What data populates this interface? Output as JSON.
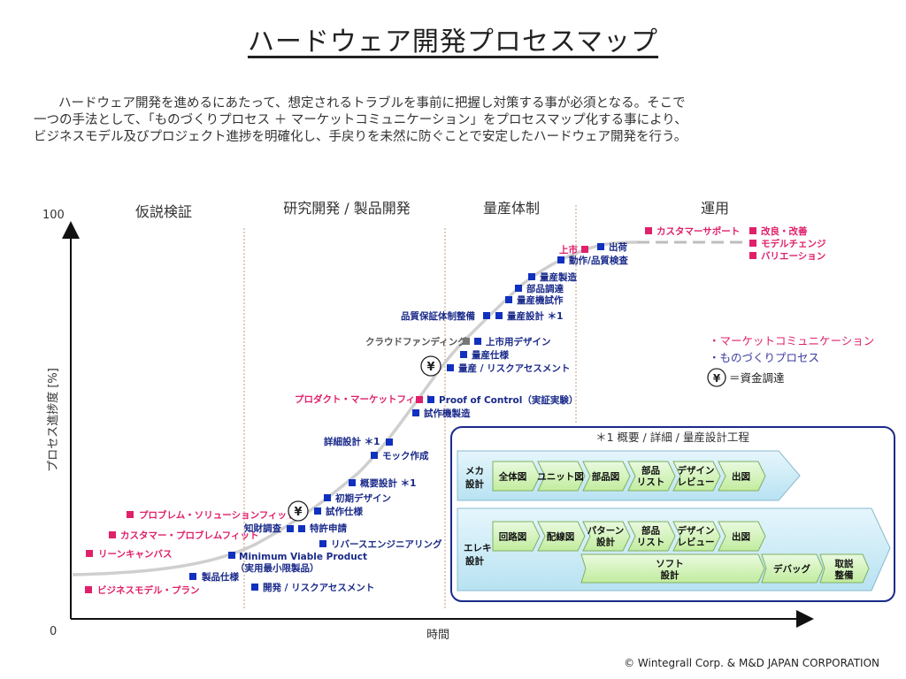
{
  "title": "ハードウェア開発プロセスマップ",
  "intro": [
    "ハードウェア開発を進めるにあたって、想定されるトラブルを事前に把握し対策する事が必須となる。そこで",
    "一つの手法として、「ものづくりプロセス ＋ マーケットコミュニケーション」をプロセスマップ化する事により、",
    "ビジネスモデル及びプロジェクト進捗を明確化し、手戻りを未然に防ぐことで安定したハードウェア開発を行う。"
  ],
  "phases": [
    "仮説検証",
    "研究開発 / 製品開発",
    "量産体制",
    "運用"
  ],
  "axes": {
    "y_label": "プロセス進捗度 [%]",
    "y_max": "100",
    "y_min": "0",
    "x_label": "時間"
  },
  "colors": {
    "blue": "#1030c0",
    "pink": "#e0206a",
    "gray": "#777777",
    "curve": "#cccccc",
    "box_border": "#1a2a8a"
  },
  "steps": {
    "business_model": "ビジネスモデル・プラン",
    "lean_canvas": "リーンキャンバス",
    "customer_problem": "カスタマー・プロブレムフィット",
    "problem_solution": "プロブレム・ソリューションフィット",
    "product_spec": "製品仕様",
    "dev_risk": "開発 / リスクアセスメント",
    "mvp_line1": "Minimum Viable Product",
    "mvp_line2": "（実用最小限製品）",
    "reverse_eng": "リバースエンジニアリング",
    "ip_research": "知財調査",
    "patent": "特許申請",
    "prototype_spec": "試作仕様",
    "initial_design": "初期デザイン",
    "outline_design": "概要設計 ＊1",
    "mock": "モック作成",
    "detail_design": "詳細設計 ＊1",
    "proto_build": "試作機製造",
    "product_market_fit": "プロダクト・マーケットフィット",
    "proof_of_control": "Proof of Control（実証実験）",
    "mass_risk": "量産 / リスクアセスメント",
    "mass_spec": "量産仕様",
    "crowdfunding": "クラウドファンディング",
    "launch_design": "上市用デザイン",
    "qa_system": "品質保証体制整備",
    "mass_design": "量産設計 ＊1",
    "mass_trial": "量産機試作",
    "parts_procure": "部品調達",
    "mass_production": "量産製造",
    "operation_check": "動作/品質検査",
    "launch": "上市",
    "shipping": "出荷",
    "customer_support": "カスタマーサポート",
    "improvement": "改良・改善",
    "model_change": "モデルチェンジ",
    "variation": "バリエーション"
  },
  "yen_symbol": "¥",
  "legend": {
    "market": "・マーケットコミュニケーション",
    "mono": "・ものづくりプロセス",
    "funding": "＝資金調達"
  },
  "design_box": {
    "title": "＊1 概要 / 詳細 / 量産設計工程",
    "mecha_label": [
      "メカ",
      "設計"
    ],
    "mecha_steps": [
      [
        "全体図"
      ],
      [
        "ユニット図"
      ],
      [
        "部品図"
      ],
      [
        "部品",
        "リスト"
      ],
      [
        "デザイン",
        "レビュー"
      ],
      [
        "出図"
      ]
    ],
    "elec_label": [
      "エレキ",
      "設計"
    ],
    "elec_steps": [
      [
        "回路図"
      ],
      [
        "配線図"
      ],
      [
        "パターン",
        "設計"
      ],
      [
        "部品",
        "リスト"
      ],
      [
        "デザイン",
        "レビュー"
      ],
      [
        "出図"
      ]
    ],
    "soft_label": [
      "ソフト",
      "設計"
    ],
    "debug_label": [
      "デバッグ"
    ],
    "manual_label": [
      "取説",
      "整備"
    ]
  },
  "copyright": "© Wintegrall Corp. & M&D JAPAN CORPORATION"
}
